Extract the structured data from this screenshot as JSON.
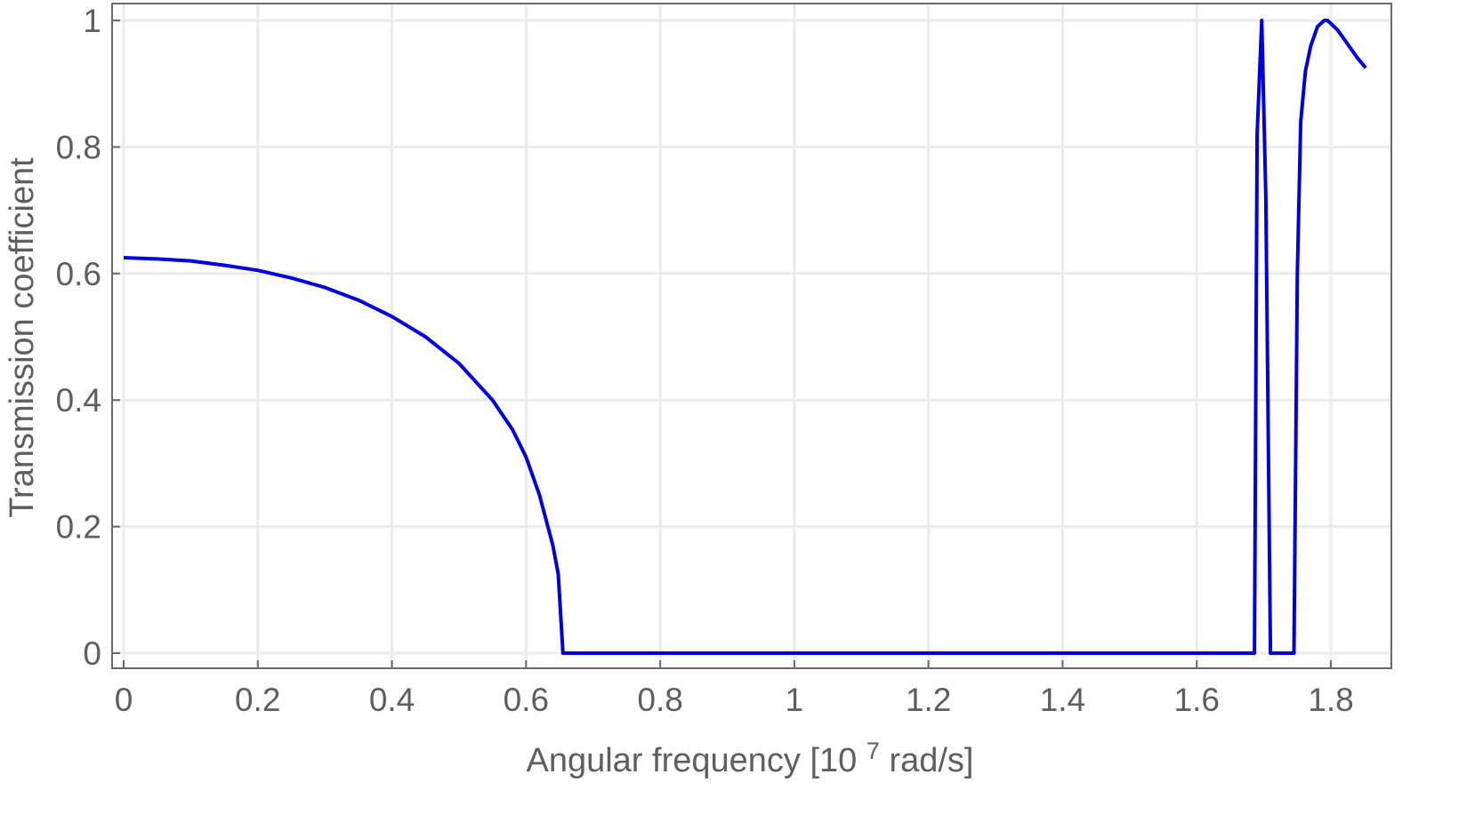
{
  "chart_data": {
    "type": "line",
    "xlabel": {
      "base": "Angular frequency [10",
      "superscript": "7",
      "tail": " rad/s]"
    },
    "ylabel": "Transmission coefficient",
    "xlim": [
      -0.01,
      1.88
    ],
    "ylim": [
      -0.03,
      1.02
    ],
    "xticks": [
      0,
      0.2,
      0.4,
      0.6,
      0.8,
      1,
      1.2,
      1.4,
      1.6,
      1.8
    ],
    "xtick_labels": [
      "0",
      "0.2",
      "0.4",
      "0.6",
      "0.8",
      "1",
      "1.2",
      "1.4",
      "1.6",
      "1.8"
    ],
    "yticks": [
      0,
      0.2,
      0.4,
      0.6,
      0.8,
      1
    ],
    "ytick_labels": [
      "0",
      "0.2",
      "0.4",
      "0.6",
      "0.8",
      "1"
    ],
    "grid": true,
    "colors": {
      "line": "#0000e0",
      "grid": "#ebebeb",
      "frame": "#6a6a6a",
      "text": "#5e5e5e"
    },
    "series": [
      {
        "x": [
          0,
          0.05,
          0.1,
          0.15,
          0.2,
          0.25,
          0.3,
          0.35,
          0.4,
          0.45,
          0.5,
          0.55,
          0.58,
          0.6,
          0.62,
          0.64,
          0.648,
          0.655,
          0.66,
          0.7,
          0.8,
          1.0,
          1.2,
          1.4,
          1.6,
          1.686,
          1.69,
          1.697,
          1.703,
          1.71,
          1.74,
          1.745,
          1.75,
          1.755,
          1.762,
          1.77,
          1.78,
          1.79,
          1.795,
          1.8,
          1.81,
          1.82,
          1.83,
          1.84,
          1.852
        ],
        "y": [
          0.625,
          0.623,
          0.62,
          0.613,
          0.605,
          0.593,
          0.578,
          0.558,
          0.532,
          0.5,
          0.458,
          0.4,
          0.353,
          0.31,
          0.25,
          0.17,
          0.125,
          0.0,
          0.0,
          0.0,
          0.0,
          0.0,
          0.0,
          0.0,
          0.0,
          0.0,
          0.82,
          1.0,
          0.72,
          0.0,
          0.0,
          0.0,
          0.6,
          0.84,
          0.92,
          0.96,
          0.99,
          1.0,
          1.0,
          0.995,
          0.985,
          0.97,
          0.955,
          0.94,
          0.925
        ]
      }
    ]
  }
}
